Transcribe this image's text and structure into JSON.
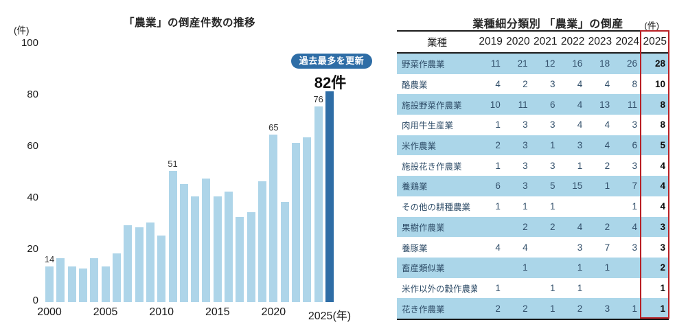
{
  "colors": {
    "bar_light": "#aed5e9",
    "bar_dark": "#2e6da6",
    "badge_bg": "#2e6da6",
    "table_row_alt": "#abd6e9",
    "highlight_box": "#b82025"
  },
  "chart_data": [
    {
      "type": "bar",
      "title": "「農業」の倒産件数の推移",
      "unit": "(件)",
      "years": [
        2000,
        2001,
        2002,
        2003,
        2004,
        2005,
        2006,
        2007,
        2008,
        2009,
        2010,
        2011,
        2012,
        2013,
        2014,
        2015,
        2016,
        2017,
        2018,
        2019,
        2020,
        2021,
        2022,
        2023,
        2024,
        2025
      ],
      "values": [
        14,
        17,
        14,
        13,
        17,
        14,
        19,
        30,
        29,
        31,
        26,
        51,
        46,
        41,
        48,
        41,
        43,
        33,
        35,
        47,
        65,
        39,
        62,
        64,
        76,
        82
      ],
      "ylim": [
        0,
        100
      ],
      "yticks": [
        100,
        80,
        60,
        40,
        20,
        0
      ],
      "x_ticks": [
        {
          "label": "2000",
          "i": 0
        },
        {
          "label": "2005",
          "i": 5
        },
        {
          "label": "2010",
          "i": 10
        },
        {
          "label": "2015",
          "i": 15
        },
        {
          "label": "2020",
          "i": 20
        },
        {
          "label": "2025(年)",
          "i": 25
        }
      ],
      "point_labels": {
        "0": "14",
        "11": "51",
        "20": "65",
        "24": "76"
      },
      "highlight_index": 25,
      "big_label": "82件",
      "badge": "過去最多を更新",
      "grid": false,
      "legend": false
    },
    {
      "type": "table",
      "title": "業種細分類別 「農業」の倒産",
      "unit": "(件)",
      "columns": [
        "業種",
        "2019",
        "2020",
        "2021",
        "2022",
        "2023",
        "2024",
        "2025"
      ],
      "highlight_column": "2025",
      "rows": [
        {
          "label": "野菜作農業",
          "values": [
            "11",
            "21",
            "12",
            "16",
            "18",
            "26",
            "28"
          ]
        },
        {
          "label": "酪農業",
          "values": [
            "4",
            "2",
            "3",
            "4",
            "4",
            "8",
            "10"
          ]
        },
        {
          "label": "施設野菜作農業",
          "values": [
            "10",
            "11",
            "6",
            "4",
            "13",
            "11",
            "8"
          ]
        },
        {
          "label": "肉用牛生産業",
          "values": [
            "1",
            "3",
            "3",
            "4",
            "4",
            "3",
            "8"
          ]
        },
        {
          "label": "米作農業",
          "values": [
            "2",
            "3",
            "1",
            "3",
            "4",
            "6",
            "5"
          ]
        },
        {
          "label": "施設花き作農業",
          "values": [
            "1",
            "3",
            "3",
            "1",
            "2",
            "3",
            "4"
          ]
        },
        {
          "label": "養鶏業",
          "values": [
            "6",
            "3",
            "5",
            "15",
            "1",
            "7",
            "4"
          ]
        },
        {
          "label": "その他の耕種農業",
          "values": [
            "1",
            "1",
            "1",
            "",
            "",
            "1",
            "4"
          ]
        },
        {
          "label": "果樹作農業",
          "values": [
            "",
            "2",
            "2",
            "4",
            "2",
            "4",
            "3"
          ]
        },
        {
          "label": "養豚業",
          "values": [
            "4",
            "4",
            "",
            "3",
            "7",
            "3",
            "3"
          ]
        },
        {
          "label": "畜産類似業",
          "values": [
            "",
            "1",
            "",
            "1",
            "1",
            "",
            "2"
          ]
        },
        {
          "label": "米作以外の穀作農業",
          "values": [
            "1",
            "",
            "1",
            "1",
            "",
            "",
            "1"
          ]
        },
        {
          "label": "花き作農業",
          "values": [
            "2",
            "2",
            "1",
            "2",
            "3",
            "1",
            "1"
          ]
        }
      ]
    }
  ]
}
